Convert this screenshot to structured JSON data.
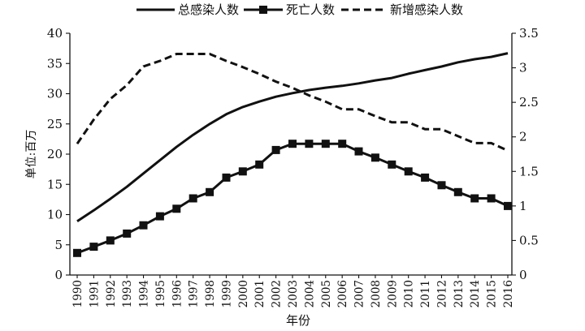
{
  "chart_data": {
    "type": "line",
    "x": [
      1990,
      1991,
      1992,
      1993,
      1994,
      1995,
      1996,
      1997,
      1998,
      1999,
      2000,
      2001,
      2002,
      2003,
      2004,
      2005,
      2006,
      2007,
      2008,
      2009,
      2010,
      2011,
      2012,
      2013,
      2014,
      2015,
      2016
    ],
    "xlabel": "年份",
    "ylabel": "单位:百万",
    "ylim_left": [
      0,
      40
    ],
    "yticks_left": [
      0,
      5,
      10,
      15,
      20,
      25,
      30,
      35,
      40
    ],
    "ylim_right": [
      0,
      3.5
    ],
    "yticks_right": [
      0,
      0.5,
      1.0,
      1.5,
      2.0,
      2.5,
      3.0,
      3.5
    ],
    "legend_position": "top",
    "series": [
      {
        "name": "总感染人数",
        "axis": "left",
        "style": "solid",
        "values": [
          8.9,
          10.7,
          12.6,
          14.6,
          16.8,
          19.0,
          21.2,
          23.2,
          25.0,
          26.6,
          27.8,
          28.7,
          29.5,
          30.1,
          30.6,
          31.0,
          31.3,
          31.7,
          32.2,
          32.6,
          33.3,
          33.9,
          34.5,
          35.2,
          35.7,
          36.1,
          36.7
        ]
      },
      {
        "name": "死亡人数",
        "axis": "right",
        "style": "square-markers",
        "values": [
          0.32,
          0.41,
          0.5,
          0.6,
          0.72,
          0.85,
          0.96,
          1.11,
          1.2,
          1.41,
          1.5,
          1.6,
          1.81,
          1.9,
          1.9,
          1.9,
          1.9,
          1.79,
          1.7,
          1.6,
          1.5,
          1.41,
          1.3,
          1.2,
          1.11,
          1.11,
          1.0
        ]
      },
      {
        "name": "新增感染人数",
        "axis": "right",
        "style": "dashed",
        "values": [
          1.9,
          2.25,
          2.55,
          2.75,
          3.02,
          3.1,
          3.2,
          3.2,
          3.2,
          3.1,
          3.01,
          2.91,
          2.8,
          2.71,
          2.6,
          2.51,
          2.4,
          2.4,
          2.3,
          2.21,
          2.21,
          2.11,
          2.11,
          2.01,
          1.91,
          1.91,
          1.8
        ]
      }
    ]
  }
}
